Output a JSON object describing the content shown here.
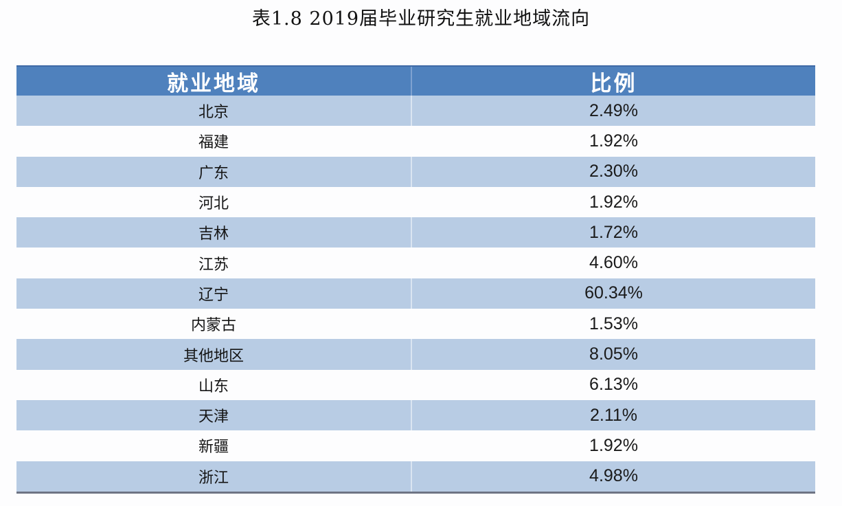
{
  "title": "表1.8 2019届毕业研究生就业地域流向",
  "table": {
    "headers": [
      "就业地域",
      "比例"
    ],
    "rows": [
      {
        "region": "北京",
        "ratio": "2.49%"
      },
      {
        "region": "福建",
        "ratio": "1.92%"
      },
      {
        "region": "广东",
        "ratio": "2.30%"
      },
      {
        "region": "河北",
        "ratio": "1.92%"
      },
      {
        "region": "吉林",
        "ratio": "1.72%"
      },
      {
        "region": "江苏",
        "ratio": "4.60%"
      },
      {
        "region": "辽宁",
        "ratio": "60.34%"
      },
      {
        "region": "内蒙古",
        "ratio": "1.53%"
      },
      {
        "region": "其他地区",
        "ratio": "8.05%"
      },
      {
        "region": "山东",
        "ratio": "6.13%"
      },
      {
        "region": "天津",
        "ratio": "2.11%"
      },
      {
        "region": "新疆",
        "ratio": "1.92%"
      },
      {
        "region": "浙江",
        "ratio": "4.98%"
      }
    ]
  },
  "colors": {
    "header_bg": "#4f81bd",
    "band_bg": "#b8cce4",
    "plain_bg": "#fdfdfe",
    "header_text": "#ffffff"
  }
}
